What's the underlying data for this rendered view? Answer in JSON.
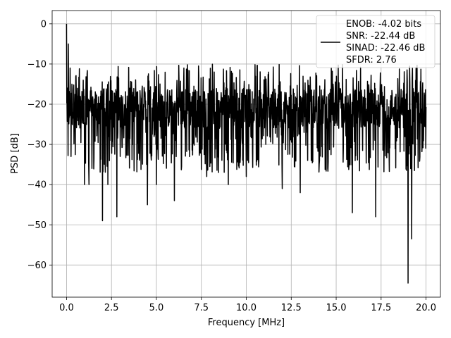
{
  "chart_data": {
    "type": "line",
    "title": "",
    "xlabel": "Frequency [MHz]",
    "ylabel": "PSD [dB]",
    "xlim": [
      -0.8,
      20.8
    ],
    "ylim": [
      -68,
      3.3
    ],
    "xticks": [
      0.0,
      2.5,
      5.0,
      7.5,
      10.0,
      12.5,
      15.0,
      17.5,
      20.0
    ],
    "xtick_labels": [
      "0.0",
      "2.5",
      "5.0",
      "7.5",
      "10.0",
      "12.5",
      "15.0",
      "17.5",
      "20.0"
    ],
    "yticks": [
      0,
      -10,
      -20,
      -30,
      -40,
      -50,
      -60
    ],
    "ytick_labels": [
      "0",
      "−10",
      "−20",
      "−30",
      "−40",
      "−50",
      "−60"
    ],
    "grid": true,
    "legend_position": "top-right",
    "series_color": "#000000",
    "series": [
      {
        "name": "ENOB: -4.02 bits\nSNR: -22.44 dB\nSINAD: -22.46 dB\nSFDR: 2.76",
        "legend_lines": [
          "ENOB: -4.02 bits",
          "SNR: -22.44 dB",
          "SINAD: -22.46 dB",
          "SFDR: 2.76"
        ],
        "noise_floor_db": -21,
        "x": [
          0.0,
          0.05,
          0.1,
          0.15,
          0.2,
          0.25,
          0.3,
          1.0,
          1.25,
          2.0,
          2.3,
          2.8,
          4.5,
          5.0,
          6.0,
          7.8,
          9.0,
          10.0,
          12.0,
          13.0,
          15.9,
          17.2,
          19.0,
          19.2
        ],
        "y": [
          0.0,
          -16.0,
          -5.0,
          -22.0,
          -11.0,
          -33.0,
          -15.0,
          -40.0,
          -40.0,
          -49.0,
          -40.0,
          -48.0,
          -45.0,
          -40.0,
          -44.0,
          -38.0,
          -40.0,
          -38.0,
          -41.0,
          -42.0,
          -47.0,
          -48.0,
          -64.5,
          -53.5
        ]
      }
    ]
  }
}
